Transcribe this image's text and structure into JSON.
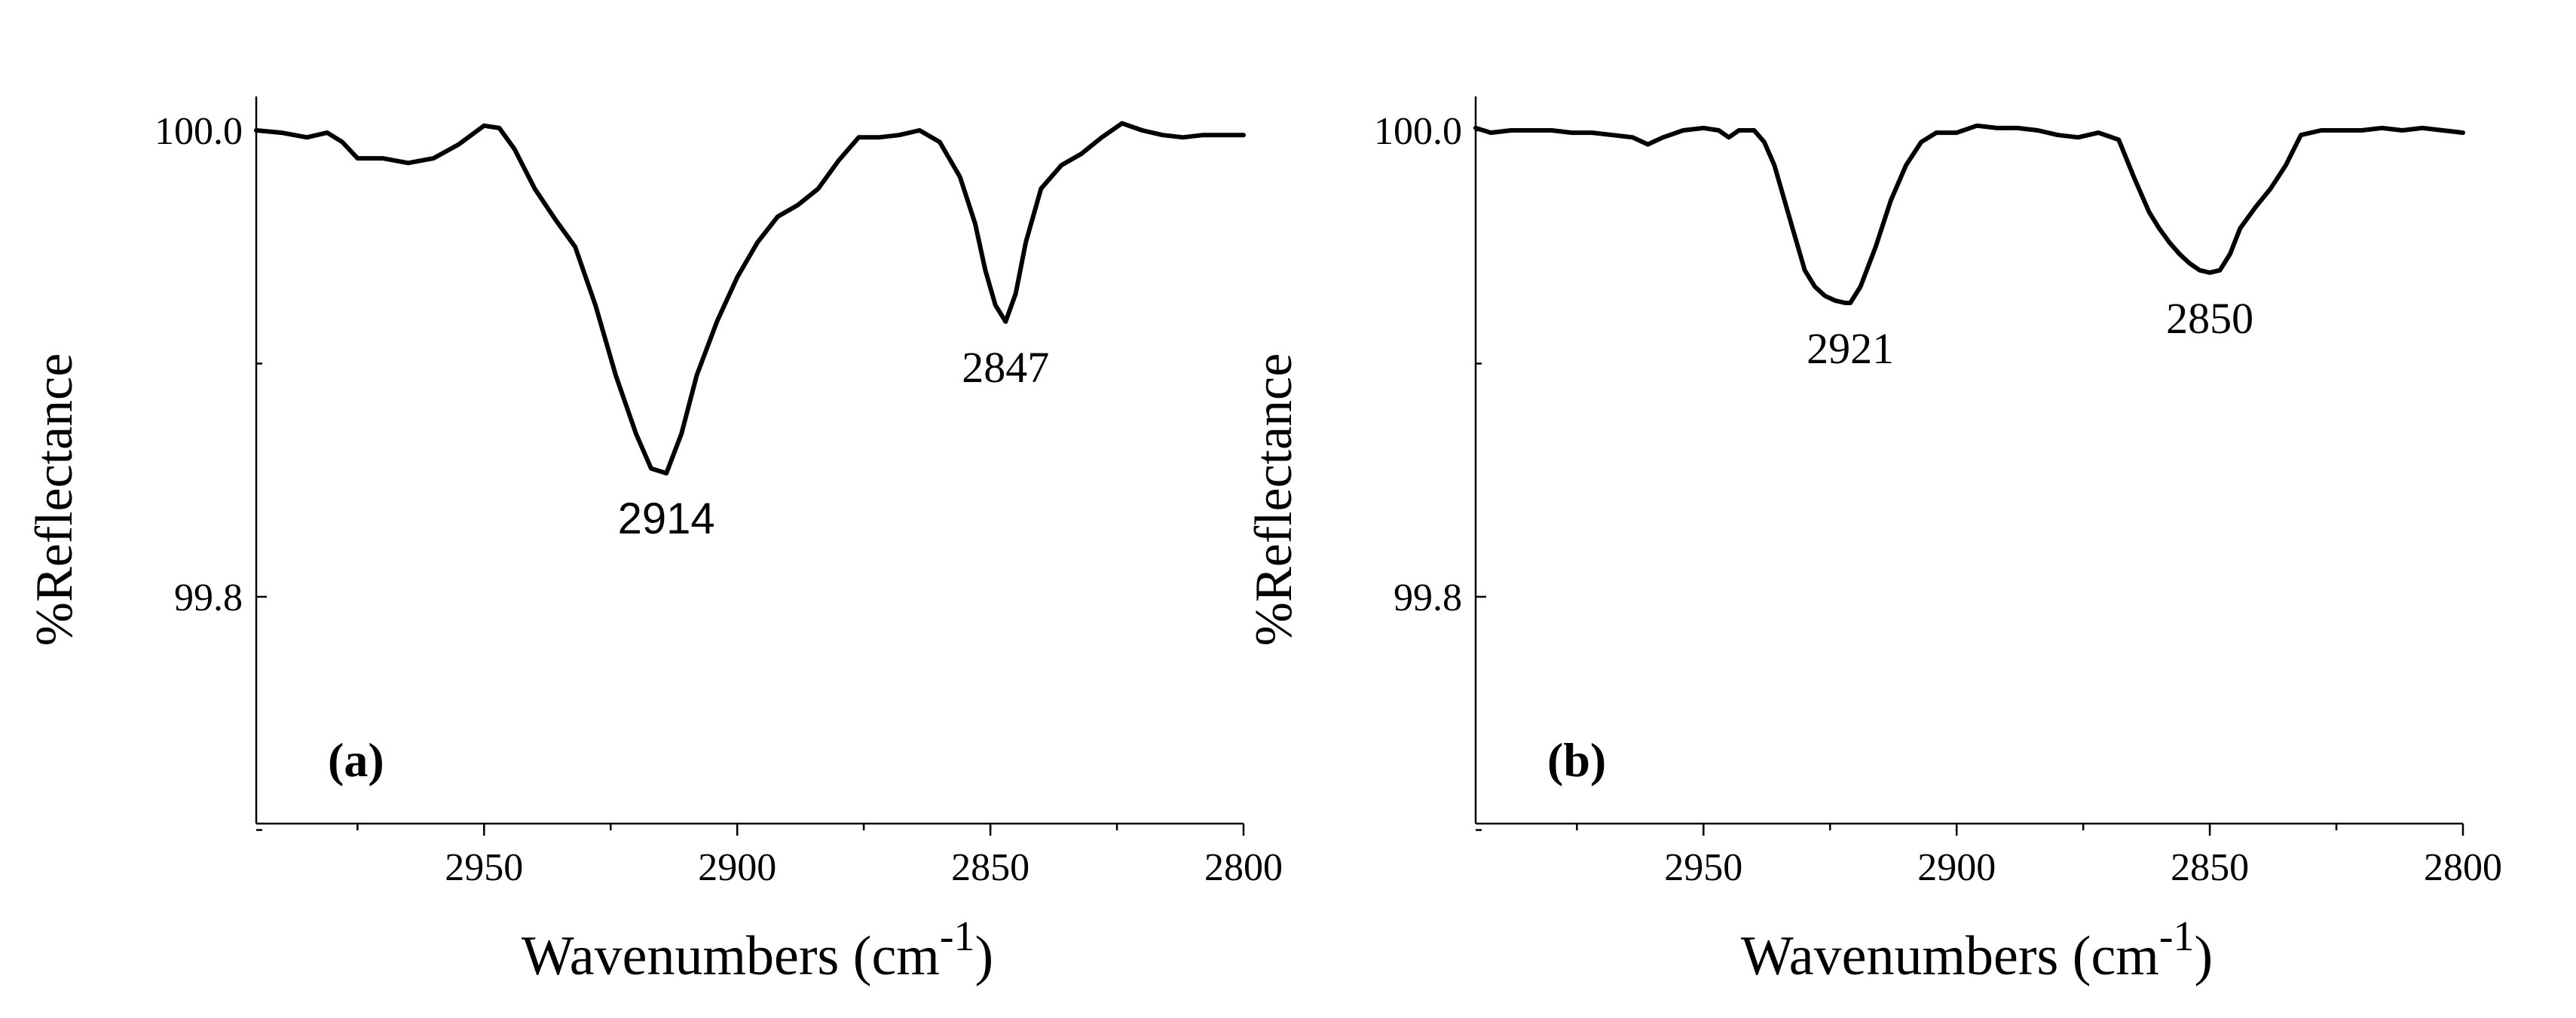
{
  "chart_data": [
    {
      "type": "line",
      "panel_label": "(a)",
      "xlabel": "Wavenumbers (cm",
      "xlabel_superscript": "-1",
      "xlabel_close": ")",
      "ylabel": "%Reflectance",
      "xlim": [
        2995,
        2800
      ],
      "ylim": [
        99.7,
        100.01
      ],
      "x_ticks": [
        2950,
        2900,
        2850,
        2800
      ],
      "y_ticks": [
        100.0,
        99.8
      ],
      "y_tick_labels": [
        "100.0",
        "99.8"
      ],
      "series": [
        {
          "name": "spectrum a",
          "x": [
            2995,
            2990,
            2985,
            2981,
            2978,
            2975,
            2970,
            2965,
            2960,
            2955,
            2950,
            2947,
            2944,
            2940,
            2936,
            2932,
            2928,
            2924,
            2920,
            2917,
            2914,
            2911,
            2908,
            2904,
            2900,
            2896,
            2892,
            2888,
            2884,
            2880,
            2876,
            2872,
            2868,
            2864,
            2860,
            2856,
            2853,
            2851,
            2849,
            2847,
            2845,
            2843,
            2840,
            2836,
            2832,
            2828,
            2824,
            2820,
            2816,
            2812,
            2808,
            2804,
            2800
          ],
          "y": [
            100.0,
            99.999,
            99.997,
            99.999,
            99.995,
            99.988,
            99.988,
            99.986,
            99.988,
            99.994,
            100.002,
            100.001,
            99.992,
            99.975,
            99.962,
            99.95,
            99.925,
            99.895,
            99.87,
            99.855,
            99.853,
            99.87,
            99.895,
            99.918,
            99.937,
            99.952,
            99.963,
            99.968,
            99.975,
            99.987,
            99.997,
            99.997,
            99.998,
            100.0,
            99.995,
            99.98,
            99.96,
            99.94,
            99.925,
            99.918,
            99.93,
            99.952,
            99.975,
            99.985,
            99.99,
            99.997,
            100.003,
            100.0,
            99.998,
            99.997,
            99.998,
            99.998,
            99.998
          ]
        }
      ],
      "annotations": [
        {
          "text": "2914",
          "x": 2914,
          "y": 99.853,
          "style": "sans"
        },
        {
          "text": "2847",
          "x": 2847,
          "y": 99.918,
          "style": "serif"
        }
      ]
    },
    {
      "type": "line",
      "panel_label": "(b)",
      "xlabel": "Wavenumbers (cm",
      "xlabel_superscript": "-1",
      "xlabel_close": ")",
      "ylabel": "%Reflectance",
      "xlim": [
        2995,
        2800
      ],
      "ylim": [
        99.7,
        100.01
      ],
      "x_ticks": [
        2950,
        2900,
        2850,
        2800
      ],
      "y_ticks": [
        100.0,
        99.8
      ],
      "y_tick_labels": [
        "100.0",
        "99.8"
      ],
      "series": [
        {
          "name": "spectrum b",
          "x": [
            2995,
            2992,
            2988,
            2984,
            2980,
            2976,
            2972,
            2968,
            2964,
            2961,
            2958,
            2954,
            2950,
            2947,
            2945,
            2943,
            2940,
            2938,
            2936,
            2934,
            2932,
            2930,
            2928,
            2926,
            2924,
            2922,
            2921,
            2919,
            2916,
            2913,
            2910,
            2907,
            2904,
            2900,
            2896,
            2892,
            2888,
            2884,
            2880,
            2876,
            2872,
            2868,
            2865,
            2862,
            2860,
            2858,
            2856,
            2854,
            2852,
            2850,
            2848,
            2846,
            2844,
            2841,
            2838,
            2835,
            2832,
            2828,
            2824,
            2820,
            2816,
            2812,
            2808,
            2804,
            2800
          ],
          "y": [
            100.001,
            99.999,
            100.0,
            100.0,
            100.0,
            99.999,
            99.999,
            99.998,
            99.997,
            99.994,
            99.997,
            100.0,
            100.001,
            100.0,
            99.997,
            100.0,
            100.0,
            99.995,
            99.985,
            99.97,
            99.955,
            99.94,
            99.933,
            99.929,
            99.927,
            99.926,
            99.926,
            99.933,
            99.95,
            99.97,
            99.985,
            99.995,
            99.999,
            99.999,
            100.002,
            100.001,
            100.001,
            100.0,
            99.998,
            99.997,
            99.999,
            99.996,
            99.98,
            99.965,
            99.958,
            99.952,
            99.947,
            99.943,
            99.94,
            99.939,
            99.94,
            99.947,
            99.958,
            99.967,
            99.975,
            99.985,
            99.998,
            100.0,
            100.0,
            100.0,
            100.001,
            100.0,
            100.001,
            100.0,
            99.999
          ]
        }
      ],
      "annotations": [
        {
          "text": "2921",
          "x": 2921,
          "y": 99.926,
          "style": "serif"
        },
        {
          "text": "2850",
          "x": 2850,
          "y": 99.939,
          "style": "serif"
        }
      ]
    }
  ]
}
